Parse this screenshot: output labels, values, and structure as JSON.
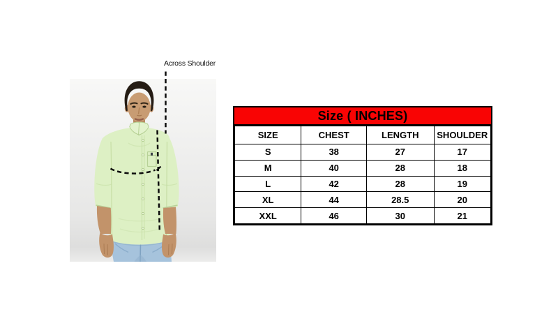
{
  "annotation": {
    "across_shoulder": "Across Shoulder"
  },
  "size_chart": {
    "title": "Size ( INCHES)",
    "header_bg": "#f90404",
    "columns": [
      "SIZE",
      "CHEST",
      "LENGTH",
      "SHOULDER"
    ],
    "rows": [
      [
        "S",
        "38",
        "27",
        "17"
      ],
      [
        "M",
        "40",
        "28",
        "18"
      ],
      [
        "L",
        "42",
        "28",
        "19"
      ],
      [
        "XL",
        "44",
        "28.5",
        "20"
      ],
      [
        "XXL",
        "46",
        "30",
        "21"
      ]
    ]
  },
  "model_photo": {
    "subject": "man wearing light green full-sleeve shirt and blue jeans",
    "shirt_color": "#ddf0c4",
    "jeans_color": "#a6c3dc"
  }
}
